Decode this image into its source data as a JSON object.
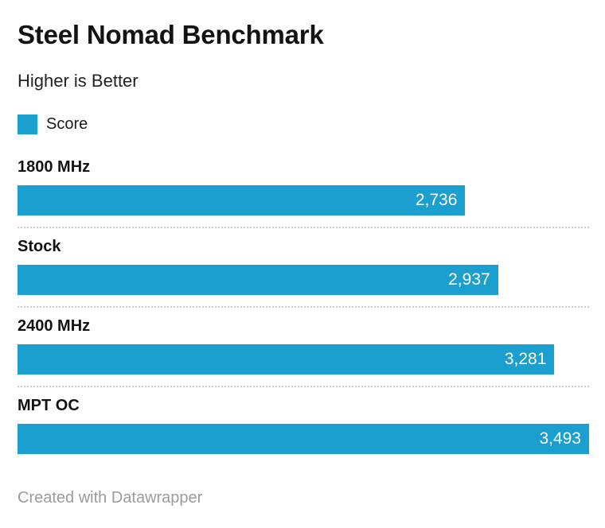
{
  "chart_data": {
    "type": "bar",
    "orientation": "horizontal",
    "title": "Steel Nomad Benchmark",
    "subtitle": "Higher is Better",
    "legend": [
      {
        "label": "Score",
        "color": "#1a9fce"
      }
    ],
    "legend_position": "top-left",
    "categories": [
      "1800 MHz",
      "Stock",
      "2400 MHz",
      "MPT OC"
    ],
    "values": [
      2736,
      2937,
      3281,
      3493
    ],
    "value_labels": [
      "2,736",
      "2,937",
      "3,281",
      "3,493"
    ],
    "xlim": [
      0,
      3493
    ],
    "grid": false,
    "bar_color": "#1a9fce",
    "value_label_color": "#ffffff",
    "separator_color": "#cccccc",
    "footer": "Created with Datawrapper"
  }
}
